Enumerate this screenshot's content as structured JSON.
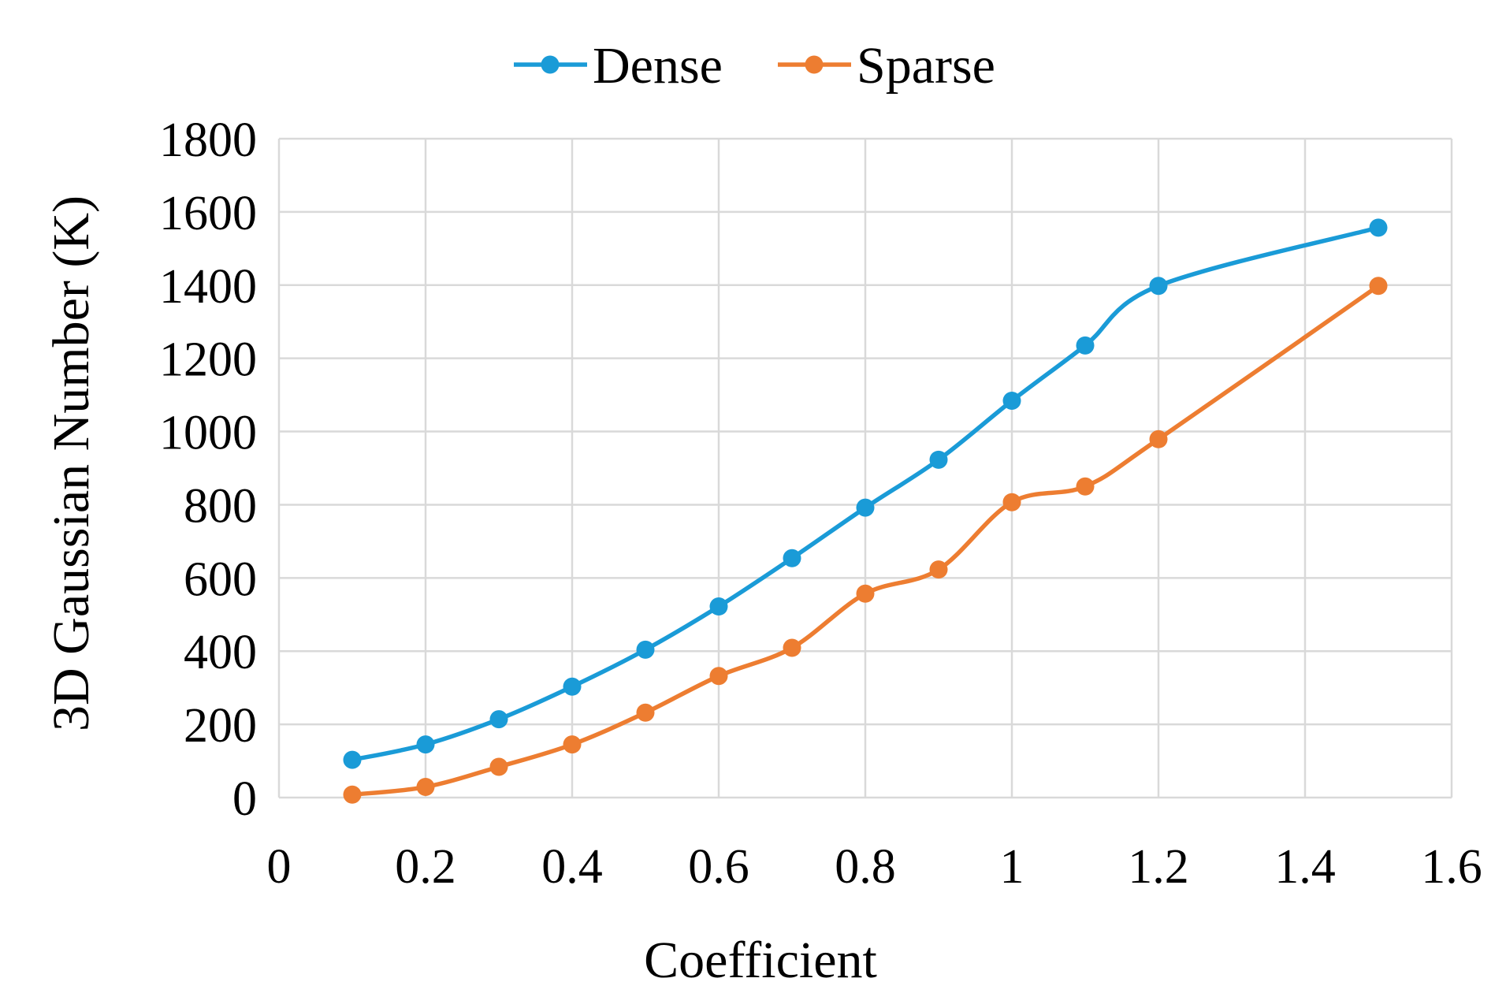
{
  "chart_data": {
    "type": "line",
    "title": "",
    "xlabel": "Coefficient",
    "ylabel": "3D Gaussian Number (K)",
    "xlim": [
      0,
      1.6
    ],
    "ylim": [
      0,
      1800
    ],
    "xticks": [
      "0",
      "0.2",
      "0.4",
      "0.6",
      "0.8",
      "1",
      "1.2",
      "1.4",
      "1.6"
    ],
    "yticks": [
      "0",
      "200",
      "400",
      "600",
      "800",
      "1000",
      "1200",
      "1400",
      "1600",
      "1800"
    ],
    "grid": true,
    "smooth": true,
    "legend_position": "top",
    "x": [
      0.1,
      0.2,
      0.3,
      0.4,
      0.5,
      0.6,
      0.7,
      0.8,
      0.9,
      1.0,
      1.1,
      1.2,
      1.5
    ],
    "series": [
      {
        "name": "Dense",
        "color": "#1A9BD7",
        "values": [
          103,
          145,
          214,
          303,
          404,
          522,
          654,
          792,
          923,
          1084,
          1235,
          1398,
          1557
        ]
      },
      {
        "name": "Sparse",
        "color": "#ED7D31",
        "values": [
          8,
          29,
          84,
          145,
          232,
          332,
          409,
          557,
          623,
          807,
          850,
          979,
          1398
        ]
      }
    ]
  }
}
